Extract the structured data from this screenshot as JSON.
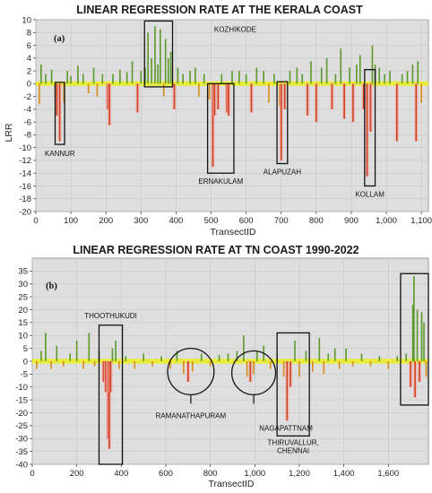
{
  "chart_data": [
    {
      "type": "bar",
      "title": "LINEAR REGRESSION RATE AT THE KERALA COAST",
      "panel_label": "(a)",
      "xlabel": "TransectID",
      "ylabel": "LRR",
      "xlim": [
        0,
        1120
      ],
      "ylim": [
        -20,
        10
      ],
      "xticks": [
        0,
        100,
        200,
        300,
        400,
        500,
        600,
        700,
        800,
        900,
        1000,
        1100
      ],
      "xtick_labels": [
        "0",
        "100",
        "200",
        "300",
        "400",
        "500",
        "600",
        "700",
        "800",
        "900",
        "1,000",
        "1,100"
      ],
      "yticks": [
        10,
        8,
        6,
        4,
        2,
        0,
        -2,
        -4,
        -6,
        -8,
        -10,
        -12,
        -14,
        -16,
        -18,
        -20
      ],
      "colors": {
        "accretion": "#5a9a2a",
        "erosion_mild": "#d98a1a",
        "erosion_strong": "#d1401c",
        "stable": "#e9ec2a",
        "background": "#dedede"
      },
      "bars": [
        {
          "x": 10,
          "value": -3.2
        },
        {
          "x": 15,
          "value": 3.0
        },
        {
          "x": 28,
          "value": 1.5
        },
        {
          "x": 45,
          "value": 2.2
        },
        {
          "x": 55,
          "value": -2.0
        },
        {
          "x": 60,
          "value": -5.0
        },
        {
          "x": 68,
          "value": -9.0
        },
        {
          "x": 80,
          "value": -3.0
        },
        {
          "x": 90,
          "value": 2.0
        },
        {
          "x": 100,
          "value": 1.2
        },
        {
          "x": 120,
          "value": 2.8
        },
        {
          "x": 135,
          "value": 1.5
        },
        {
          "x": 150,
          "value": -1.5
        },
        {
          "x": 165,
          "value": 2.5
        },
        {
          "x": 175,
          "value": -2.0
        },
        {
          "x": 190,
          "value": 1.5
        },
        {
          "x": 205,
          "value": -4.0
        },
        {
          "x": 210,
          "value": -6.5
        },
        {
          "x": 220,
          "value": 1.5
        },
        {
          "x": 240,
          "value": 2.2
        },
        {
          "x": 260,
          "value": 1.8
        },
        {
          "x": 275,
          "value": 3.5
        },
        {
          "x": 290,
          "value": -4.5
        },
        {
          "x": 300,
          "value": 2.0
        },
        {
          "x": 312,
          "value": 2.5
        },
        {
          "x": 320,
          "value": 8.0
        },
        {
          "x": 330,
          "value": 4.0
        },
        {
          "x": 340,
          "value": 9.0
        },
        {
          "x": 348,
          "value": 3.0
        },
        {
          "x": 355,
          "value": 8.5
        },
        {
          "x": 365,
          "value": -2.0
        },
        {
          "x": 370,
          "value": 7.0
        },
        {
          "x": 378,
          "value": 4.0
        },
        {
          "x": 385,
          "value": 5.0
        },
        {
          "x": 395,
          "value": -4.0
        },
        {
          "x": 405,
          "value": 2.5
        },
        {
          "x": 420,
          "value": 1.5
        },
        {
          "x": 440,
          "value": 2.0
        },
        {
          "x": 455,
          "value": 2.5
        },
        {
          "x": 465,
          "value": -2.0
        },
        {
          "x": 480,
          "value": 1.5
        },
        {
          "x": 495,
          "value": -2.5
        },
        {
          "x": 505,
          "value": -13.0
        },
        {
          "x": 510,
          "value": -5.0
        },
        {
          "x": 520,
          "value": -4.0
        },
        {
          "x": 530,
          "value": 1.5
        },
        {
          "x": 545,
          "value": -4.5
        },
        {
          "x": 550,
          "value": -5.0
        },
        {
          "x": 560,
          "value": 2.0
        },
        {
          "x": 580,
          "value": 2.0
        },
        {
          "x": 600,
          "value": 1.5
        },
        {
          "x": 615,
          "value": -4.5
        },
        {
          "x": 630,
          "value": 2.5
        },
        {
          "x": 650,
          "value": 2.0
        },
        {
          "x": 665,
          "value": -3.0
        },
        {
          "x": 680,
          "value": 1.5
        },
        {
          "x": 695,
          "value": -3.5
        },
        {
          "x": 700,
          "value": -12.0
        },
        {
          "x": 710,
          "value": -4.0
        },
        {
          "x": 725,
          "value": 2.0
        },
        {
          "x": 745,
          "value": 2.5
        },
        {
          "x": 760,
          "value": 1.5
        },
        {
          "x": 775,
          "value": -5.0
        },
        {
          "x": 785,
          "value": 3.5
        },
        {
          "x": 800,
          "value": -6.0
        },
        {
          "x": 815,
          "value": 2.5
        },
        {
          "x": 830,
          "value": 4.0
        },
        {
          "x": 845,
          "value": -4.0
        },
        {
          "x": 855,
          "value": 1.5
        },
        {
          "x": 870,
          "value": 5.5
        },
        {
          "x": 880,
          "value": -5.5
        },
        {
          "x": 895,
          "value": 2.5
        },
        {
          "x": 905,
          "value": -6.0
        },
        {
          "x": 915,
          "value": 3.0
        },
        {
          "x": 925,
          "value": 4.5
        },
        {
          "x": 935,
          "value": -4.0
        },
        {
          "x": 945,
          "value": -14.5
        },
        {
          "x": 955,
          "value": -7.5
        },
        {
          "x": 960,
          "value": 6.0
        },
        {
          "x": 968,
          "value": 3.0
        },
        {
          "x": 980,
          "value": 2.5
        },
        {
          "x": 995,
          "value": 1.5
        },
        {
          "x": 1010,
          "value": 2.0
        },
        {
          "x": 1030,
          "value": -9.0
        },
        {
          "x": 1045,
          "value": 1.5
        },
        {
          "x": 1060,
          "value": 2.0
        },
        {
          "x": 1075,
          "value": 3.0
        },
        {
          "x": 1085,
          "value": -9.0
        },
        {
          "x": 1090,
          "value": 3.5
        },
        {
          "x": 1100,
          "value": -3.0
        }
      ],
      "regions": [
        {
          "label": "KANNUR",
          "shape": "rect",
          "x0": 55,
          "x1": 82,
          "y0": -9.5,
          "y1": 0.2
        },
        {
          "label": "KOZHIKODE",
          "shape": "rect",
          "x0": 310,
          "x1": 390,
          "y0": -0.5,
          "y1": 9.8
        },
        {
          "label": "ERNAKULAM",
          "shape": "rect",
          "x0": 490,
          "x1": 565,
          "y0": -14,
          "y1": 0
        },
        {
          "label": "ALAPUZAH",
          "shape": "rect",
          "x0": 688,
          "x1": 718,
          "y0": -12.5,
          "y1": 0.3
        },
        {
          "label": "KOLLAM",
          "shape": "rect",
          "x0": 938,
          "x1": 968,
          "y0": -16,
          "y1": 2.2
        }
      ]
    },
    {
      "type": "bar",
      "title": "LINEAR REGRESSION RATE AT TN COAST 1990-2022",
      "panel_label": "(b)",
      "xlabel": "TransectID",
      "ylabel": "",
      "xlim": [
        0,
        1780
      ],
      "ylim": [
        -40,
        40
      ],
      "xticks": [
        0,
        200,
        400,
        600,
        800,
        1000,
        1200,
        1400,
        1600
      ],
      "xtick_labels": [
        "0",
        "200",
        "400",
        "600",
        "800",
        "1,000",
        "1,200",
        "1,400",
        "1,600"
      ],
      "yticks": [
        35,
        30,
        25,
        20,
        15,
        10,
        5,
        0,
        -5,
        -10,
        -15,
        -20,
        -25,
        -30,
        -35,
        -40
      ],
      "colors": {
        "accretion": "#5a9a2a",
        "erosion_mild": "#d98a1a",
        "erosion_strong": "#d1401c",
        "stable": "#e9ec2a",
        "background": "#dedede"
      },
      "bars": [
        {
          "x": 20,
          "value": -3.0
        },
        {
          "x": 40,
          "value": 4.0
        },
        {
          "x": 60,
          "value": 11.0
        },
        {
          "x": 85,
          "value": -3.0
        },
        {
          "x": 110,
          "value": 6.0
        },
        {
          "x": 140,
          "value": -2.0
        },
        {
          "x": 170,
          "value": 3.0
        },
        {
          "x": 200,
          "value": 8.0
        },
        {
          "x": 230,
          "value": -3.0
        },
        {
          "x": 255,
          "value": 11.0
        },
        {
          "x": 280,
          "value": -2.0
        },
        {
          "x": 300,
          "value": 4.0
        },
        {
          "x": 320,
          "value": -8.0
        },
        {
          "x": 330,
          "value": -12.0
        },
        {
          "x": 340,
          "value": -30.0
        },
        {
          "x": 346,
          "value": -34.0
        },
        {
          "x": 352,
          "value": -12.0
        },
        {
          "x": 360,
          "value": 5.0
        },
        {
          "x": 375,
          "value": 8.0
        },
        {
          "x": 390,
          "value": -3.0
        },
        {
          "x": 420,
          "value": 2.0
        },
        {
          "x": 460,
          "value": -3.0
        },
        {
          "x": 500,
          "value": 3.0
        },
        {
          "x": 540,
          "value": -2.0
        },
        {
          "x": 580,
          "value": 2.0
        },
        {
          "x": 620,
          "value": -3.0
        },
        {
          "x": 650,
          "value": 4.0
        },
        {
          "x": 680,
          "value": -5.0
        },
        {
          "x": 700,
          "value": -8.0
        },
        {
          "x": 720,
          "value": -4.0
        },
        {
          "x": 760,
          "value": 3.0
        },
        {
          "x": 800,
          "value": -2.0
        },
        {
          "x": 840,
          "value": 2.5
        },
        {
          "x": 880,
          "value": 3.0
        },
        {
          "x": 920,
          "value": 4.0
        },
        {
          "x": 950,
          "value": 10.0
        },
        {
          "x": 965,
          "value": -6.0
        },
        {
          "x": 980,
          "value": -8.0
        },
        {
          "x": 995,
          "value": -5.0
        },
        {
          "x": 1010,
          "value": 4.0
        },
        {
          "x": 1040,
          "value": 6.0
        },
        {
          "x": 1070,
          "value": -3.0
        },
        {
          "x": 1100,
          "value": 3.0
        },
        {
          "x": 1130,
          "value": -6.0
        },
        {
          "x": 1145,
          "value": -23.0
        },
        {
          "x": 1160,
          "value": -10.0
        },
        {
          "x": 1180,
          "value": 8.0
        },
        {
          "x": 1200,
          "value": -6.0
        },
        {
          "x": 1230,
          "value": 4.0
        },
        {
          "x": 1260,
          "value": -4.0
        },
        {
          "x": 1290,
          "value": 9.0
        },
        {
          "x": 1310,
          "value": -5.0
        },
        {
          "x": 1330,
          "value": 3.0
        },
        {
          "x": 1360,
          "value": 5.0
        },
        {
          "x": 1380,
          "value": -3.0
        },
        {
          "x": 1410,
          "value": 5.0
        },
        {
          "x": 1440,
          "value": -2.0
        },
        {
          "x": 1480,
          "value": 3.0
        },
        {
          "x": 1520,
          "value": -2.0
        },
        {
          "x": 1560,
          "value": 2.0
        },
        {
          "x": 1600,
          "value": -3.0
        },
        {
          "x": 1640,
          "value": 2.0
        },
        {
          "x": 1680,
          "value": 3.0
        },
        {
          "x": 1700,
          "value": -10.0
        },
        {
          "x": 1710,
          "value": 22.0
        },
        {
          "x": 1715,
          "value": 33.0
        },
        {
          "x": 1720,
          "value": -14.0
        },
        {
          "x": 1730,
          "value": 20.0
        },
        {
          "x": 1740,
          "value": -8.0
        },
        {
          "x": 1750,
          "value": 19.0
        },
        {
          "x": 1760,
          "value": 15.0
        },
        {
          "x": 1770,
          "value": -6.0
        }
      ],
      "regions": [
        {
          "label": "THOOTHUKUDI",
          "shape": "rect",
          "x0": 300,
          "x1": 405,
          "y0": -40,
          "y1": 14
        },
        {
          "label": "RAMANATHAPURAM",
          "shape": "circle",
          "x0": 635,
          "x1": 790,
          "y0": -13,
          "y1": 5
        },
        {
          "label": "NAGAPATTNAM",
          "shape": "circle",
          "x0": 930,
          "x1": 1060,
          "y0": -13,
          "y1": 4
        },
        {
          "label": "THIRUVALLUR, CHENNAI",
          "shape": "rect",
          "x0": 1100,
          "x1": 1245,
          "y0": -29,
          "y1": 11
        },
        {
          "label": "",
          "shape": "rect",
          "x0": 1655,
          "x1": 1780,
          "y0": -17,
          "y1": 34
        }
      ]
    }
  ]
}
